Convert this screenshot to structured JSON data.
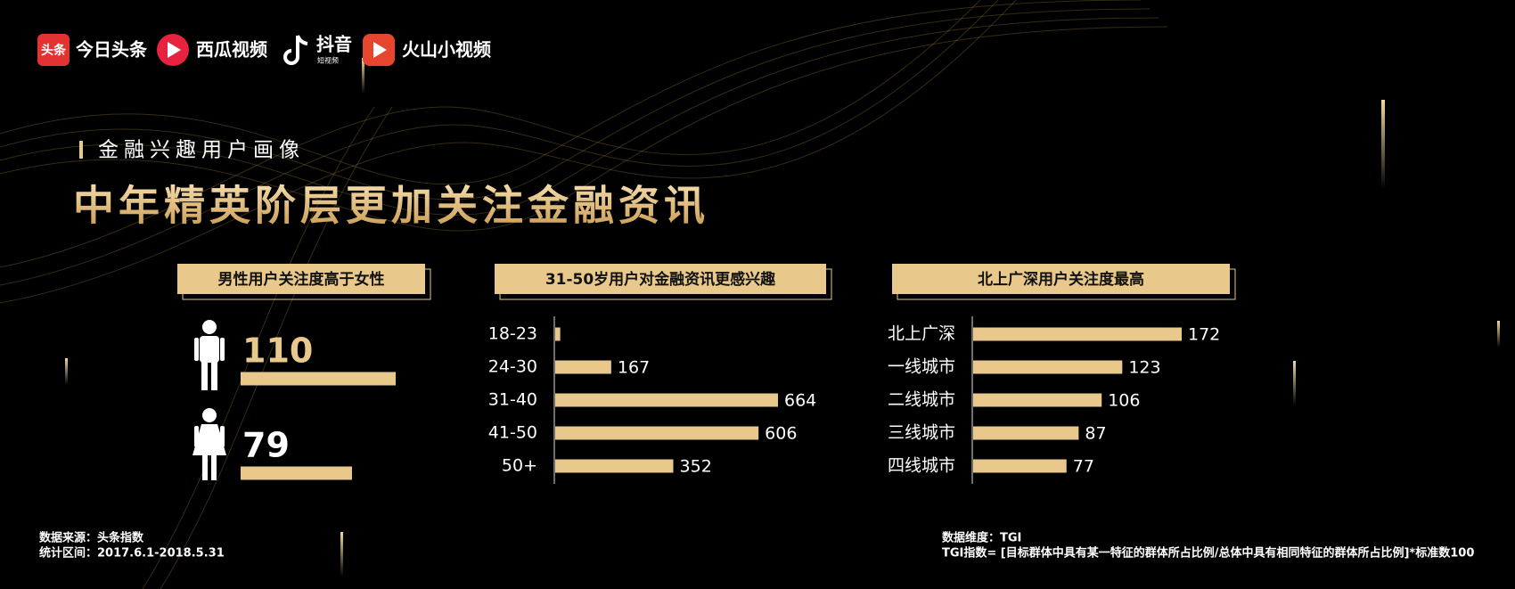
{
  "logos": [
    {
      "icon": "头条",
      "name": "今日头条"
    },
    {
      "name": "西瓜视频"
    },
    {
      "name": "抖音",
      "sub": "短视频"
    },
    {
      "name": "火山小视频"
    }
  ],
  "section_label": "金融兴趣用户画像",
  "headline": "中年精英阶层更加关注金融资讯",
  "chart_data": [
    {
      "type": "bar",
      "orientation": "horizontal",
      "title": "男性用户关注度高于女性",
      "categories": [
        null,
        null
      ],
      "values": [
        110,
        79
      ],
      "color": "#e8c98b"
    },
    {
      "type": "bar",
      "orientation": "horizontal",
      "title": "31-50岁用户对金融资讯更感兴趣",
      "categories": [
        "18-23",
        "24-30",
        "31-40",
        "41-50",
        "50+"
      ],
      "values": [
        15,
        167,
        664,
        606,
        352
      ],
      "value_labels": [
        null,
        "167",
        "664",
        "606",
        "352"
      ],
      "color": "#e8c98b"
    },
    {
      "type": "bar",
      "orientation": "horizontal",
      "title": "北上广深用户关注度最高",
      "categories": [
        "北上广深",
        "一线城市",
        "二线城市",
        "三线城市",
        "四线城市"
      ],
      "values": [
        172,
        123,
        106,
        87,
        77
      ],
      "color": "#e8c98b"
    }
  ],
  "footer": {
    "source": "数据来源：头条指数",
    "period": "统计区间：2017.6.1-2018.5.31",
    "dimension": "数据维度：TGI",
    "definition": "TGI指数= [目标群体中具有某一特征的群体所占比例/总体中具有相同特征的群体所占比例]*标准数100"
  }
}
